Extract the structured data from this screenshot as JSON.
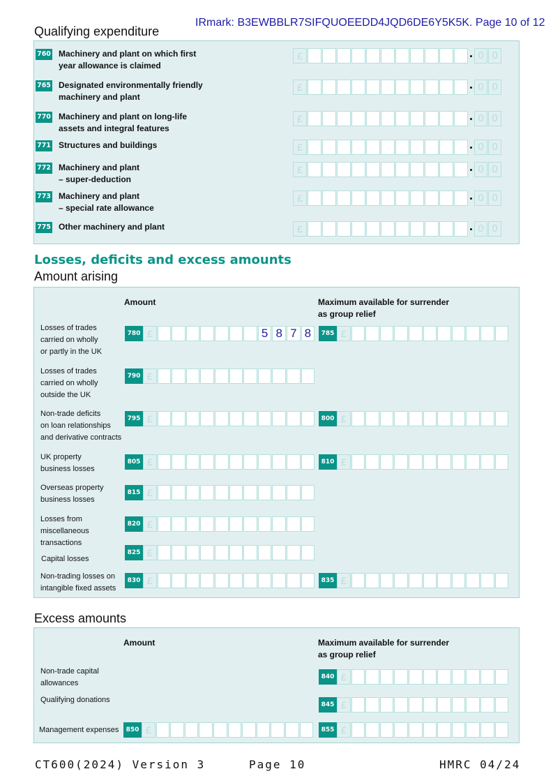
{
  "header": {
    "irmark": "IRmark: B3EWBBLR7SIFQUOEEDD4JQD6DE6Y5K5K. Page 10 of 12"
  },
  "qualifying": {
    "title": "Qualifying expenditure",
    "rows": [
      {
        "code": "760",
        "lines": [
          "Machinery and plant on which first",
          "year allowance is claimed"
        ],
        "value": ""
      },
      {
        "code": "765",
        "lines": [
          "Designated environmentally friendly",
          "machinery and plant"
        ],
        "value": ""
      },
      {
        "code": "770",
        "lines": [
          "Machinery and plant on long-life",
          "assets and integral features"
        ],
        "value": ""
      },
      {
        "code": "771",
        "lines": [
          "Structures and buildings"
        ],
        "value": ""
      },
      {
        "code": "772",
        "lines": [
          "Machinery and plant",
          "– super-deduction"
        ],
        "value": ""
      },
      {
        "code": "773",
        "lines": [
          "Machinery and plant",
          "– special rate allowance"
        ],
        "value": ""
      },
      {
        "code": "775",
        "lines": [
          "Other machinery and plant"
        ],
        "value": ""
      }
    ],
    "currency": "£",
    "pence": "0"
  },
  "losses": {
    "title": "Losses, deficits and excess amounts",
    "subtitle": "Amount arising",
    "col_amount": "Amount",
    "col_max": [
      "Maximum available for surrender",
      "as group relief"
    ],
    "rows": [
      {
        "lines": [
          "Losses of trades",
          "carried on wholly",
          "or partly in the UK"
        ],
        "code": "780",
        "value": "5878",
        "max_code": "785",
        "max_value": ""
      },
      {
        "lines": [
          "Losses of trades",
          "carried on wholly",
          "outside the UK"
        ],
        "code": "790",
        "value": ""
      },
      {
        "lines": [
          "Non-trade deficits",
          "on loan relationships",
          "and derivative contracts"
        ],
        "code": "795",
        "value": "",
        "max_code": "800",
        "max_value": ""
      },
      {
        "lines": [
          "UK property",
          "business losses"
        ],
        "code": "805",
        "value": "",
        "max_code": "810",
        "max_value": ""
      },
      {
        "lines": [
          "Overseas property",
          "business losses"
        ],
        "code": "815",
        "value": ""
      },
      {
        "lines": [
          "Losses from",
          "miscellaneous",
          "transactions"
        ],
        "code": "820",
        "value": ""
      },
      {
        "lines": [
          "Capital losses"
        ],
        "code": "825",
        "value": ""
      },
      {
        "lines": [
          "Non-trading losses on",
          "intangible fixed assets"
        ],
        "code": "830",
        "value": "",
        "max_code": "835",
        "max_value": ""
      }
    ]
  },
  "excess": {
    "title": "Excess amounts",
    "col_amount": "Amount",
    "col_max": [
      "Maximum available for surrender",
      "as group relief"
    ],
    "rows": [
      {
        "lines": [
          "Non-trade capital",
          "allowances"
        ],
        "max_code": "840",
        "max_value": ""
      },
      {
        "lines": [
          "Qualifying donations"
        ],
        "max_code": "845",
        "max_value": ""
      },
      {
        "lines": [
          "Management expenses"
        ],
        "code": "850",
        "value": "",
        "max_code": "855",
        "max_value": ""
      }
    ]
  },
  "footer": {
    "form": "CT600(2024) Version 3",
    "page": "Page 10",
    "ref": "HMRC 04/24"
  },
  "colors": {
    "teal": "#0a9488",
    "panel": "#e2eff0",
    "border": "#9dd3cf",
    "entry": "#1c1ca8"
  }
}
